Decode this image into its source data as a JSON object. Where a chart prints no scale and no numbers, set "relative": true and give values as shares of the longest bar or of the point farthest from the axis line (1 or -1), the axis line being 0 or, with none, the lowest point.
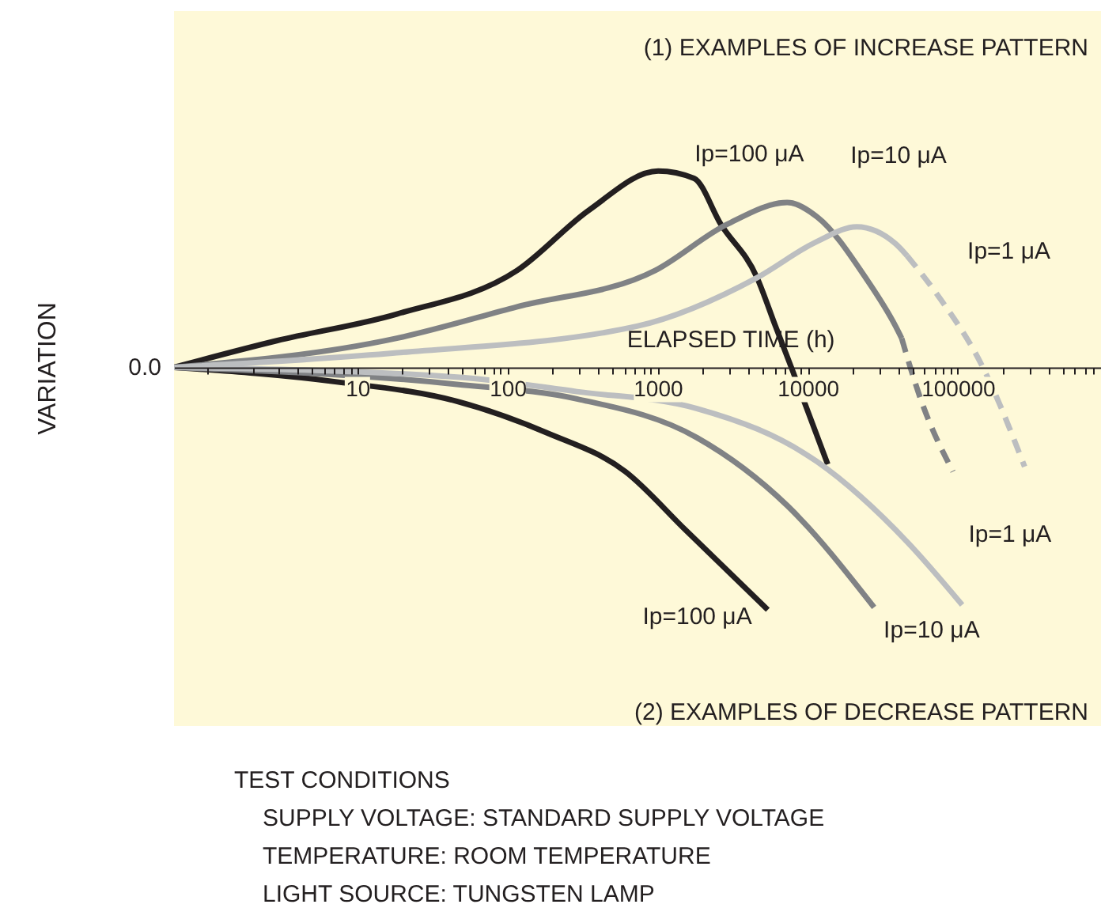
{
  "chart_data": {
    "type": "line",
    "relative": true,
    "log": "x",
    "xlabel": "ELAPSED TIME (h)",
    "ylabel": "VARIATION",
    "xlim": [
      0.6,
      900000
    ],
    "xticks": [
      {
        "value": 1,
        "label": null
      },
      {
        "value": 2,
        "label": null
      },
      {
        "value": 3,
        "label": null
      },
      {
        "value": 4,
        "label": null
      },
      {
        "value": 5,
        "label": null
      },
      {
        "value": 6,
        "label": null
      },
      {
        "value": 7,
        "label": null
      },
      {
        "value": 8,
        "label": null
      },
      {
        "value": 9,
        "label": null
      },
      10,
      {
        "value": 20,
        "label": null
      },
      {
        "value": 30,
        "label": null
      },
      {
        "value": 40,
        "label": null
      },
      {
        "value": 50,
        "label": null
      },
      {
        "value": 60,
        "label": null
      },
      {
        "value": 70,
        "label": null
      },
      {
        "value": 80,
        "label": null
      },
      {
        "value": 90,
        "label": null
      },
      100,
      {
        "value": 200,
        "label": null
      },
      {
        "value": 300,
        "label": null
      },
      {
        "value": 400,
        "label": null
      },
      {
        "value": 500,
        "label": null
      },
      {
        "value": 600,
        "label": null
      },
      {
        "value": 700,
        "label": null
      },
      {
        "value": 800,
        "label": null
      },
      {
        "value": 900,
        "label": null
      },
      1000,
      {
        "value": 2000,
        "label": null
      },
      {
        "value": 3000,
        "label": null
      },
      {
        "value": 4000,
        "label": null
      },
      {
        "value": 5000,
        "label": null
      },
      {
        "value": 6000,
        "label": null
      },
      {
        "value": 7000,
        "label": null
      },
      {
        "value": 8000,
        "label": null
      },
      {
        "value": 9000,
        "label": null
      },
      10000,
      {
        "value": 20000,
        "label": null
      },
      {
        "value": 30000,
        "label": null
      },
      {
        "value": 40000,
        "label": null
      },
      {
        "value": 50000,
        "label": null
      },
      {
        "value": 60000,
        "label": null
      },
      {
        "value": 70000,
        "label": null
      },
      {
        "value": 80000,
        "label": null
      },
      {
        "value": 90000,
        "label": null
      },
      100000,
      {
        "value": 200000,
        "label": null
      },
      {
        "value": 300000,
        "label": null
      },
      {
        "value": 400000,
        "label": null
      },
      {
        "value": 500000,
        "label": null
      },
      {
        "value": 600000,
        "label": null
      },
      {
        "value": 700000,
        "label": null
      },
      {
        "value": 800000,
        "label": null
      },
      {
        "value": 900000,
        "label": null
      }
    ],
    "series": [
      {
        "name": "Ip=100 μA",
        "color": "#231f20",
        "x": [
          0.6,
          2.9,
          18.3,
          116,
          351,
          1010,
          1750,
          2640,
          4600,
          6100,
          8000,
          13600
        ],
        "values": [
          0,
          0.11,
          0.22,
          0.4,
          0.65,
          0.81,
          0.78,
          0.59,
          0.37,
          0.17,
          -0.02,
          -0.4
        ]
      },
      {
        "name": "Ip=10 μA",
        "color": "#808285",
        "x": [
          0.6,
          18.3,
          116,
          966,
          2900,
          7300,
          11600,
          24300,
          38500,
          42300
        ],
        "values": [
          0,
          0.12,
          0.25,
          0.4,
          0.59,
          0.68,
          0.62,
          0.37,
          0.17,
          0.12
        ]
      },
      {
        "color": "#808285",
        "line_style": "dashed",
        "x": [
          42300,
          48300,
          55800,
          92900
        ],
        "values": [
          0.12,
          0,
          -0.12,
          -0.43
        ]
      },
      {
        "name": "Ip=1 μA",
        "color": "#bcbec0",
        "x": [
          0.6,
          18.3,
          730,
          4600,
          11600,
          21200,
          38500,
          46000
        ],
        "values": [
          0,
          0.06,
          0.17,
          0.37,
          0.52,
          0.58,
          0.51,
          0.46
        ]
      },
      {
        "color": "#bcbec0",
        "line_style": "dashed",
        "x": [
          46000,
          73000,
          147000,
          279000
        ],
        "values": [
          0.46,
          0.3,
          0,
          -0.41
        ]
      },
      {
        "name": "Ip=100 μA",
        "color": "#231f20",
        "x": [
          0.6,
          7.3,
          46,
          183,
          610,
          1530,
          5420
        ],
        "values": [
          0,
          -0.06,
          -0.14,
          -0.27,
          -0.43,
          -0.67,
          -1.0
        ]
      },
      {
        "name": "Ip=10 μA",
        "color": "#808285",
        "x": [
          0.6,
          46,
          290,
          1830,
          7300,
          27700
        ],
        "values": [
          0,
          -0.07,
          -0.13,
          -0.29,
          -0.57,
          -0.99
        ]
      },
      {
        "name": "Ip=1 μA",
        "color": "#bcbec0",
        "x": [
          0.6,
          46,
          290,
          1830,
          11600,
          46000,
          107000
        ],
        "values": [
          0,
          -0.04,
          -0.1,
          -0.17,
          -0.39,
          -0.72,
          -0.98
        ]
      }
    ],
    "annotations": [
      {
        "text": "0.0",
        "x": 0.6,
        "y": 0
      },
      "(1) EXAMPLES OF INCREASE PATTERN",
      "(2) EXAMPLES OF DECREASE PATTERN",
      "TEST CONDITIONS",
      "SUPPLY VOLTAGE: STANDARD SUPPLY VOLTAGE",
      "TEMPERATURE: ROOM TEMPERATURE",
      "LIGHT SOURCE: TUNGSTEN LAMP"
    ]
  }
}
